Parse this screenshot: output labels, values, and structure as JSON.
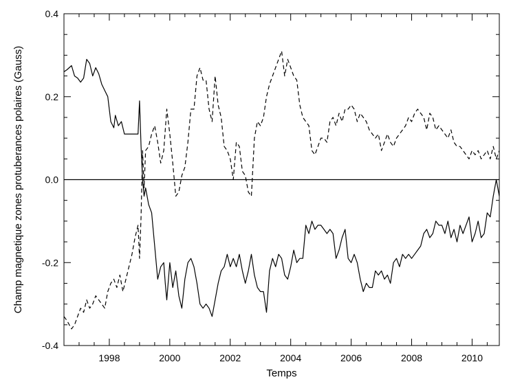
{
  "chart_data": {
    "type": "line",
    "title": "",
    "xlabel": "Temps",
    "ylabel": "Champ magnetique zones protuberances polaires (Gauss)",
    "xlim": [
      1996.5,
      2010.9
    ],
    "ylim": [
      -0.4,
      0.4
    ],
    "x_ticks": [
      1998,
      2000,
      2002,
      2004,
      2006,
      2008,
      2010
    ],
    "x_tick_labels": [
      "1998",
      "2000",
      "2002",
      "2004",
      "2006",
      "2008",
      "2010"
    ],
    "y_ticks": [
      -0.4,
      -0.2,
      0.0,
      0.2,
      0.4
    ],
    "y_tick_labels": [
      "-0.4",
      "-0.2",
      "0.0",
      "0.2",
      "0.4"
    ],
    "grid": false,
    "legend": "none",
    "zero_line": 0.0,
    "series": [
      {
        "style": "solid",
        "color": "#000000",
        "x": [
          1996.5,
          1996.6,
          1996.75,
          1996.85,
          1996.95,
          1997.05,
          1997.15,
          1997.25,
          1997.35,
          1997.45,
          1997.55,
          1997.65,
          1997.75,
          1997.85,
          1997.95,
          1998.05,
          1998.15,
          1998.2,
          1998.3,
          1998.4,
          1998.5,
          1998.6,
          1998.7,
          1998.8,
          1998.9,
          1998.95,
          1999.0,
          1999.05,
          1999.1,
          1999.15,
          1999.2,
          1999.3,
          1999.4,
          1999.5,
          1999.6,
          1999.7,
          1999.8,
          1999.85,
          1999.9,
          2000.0,
          2000.1,
          2000.2,
          2000.3,
          2000.4,
          2000.5,
          2000.6,
          2000.7,
          2000.8,
          2000.9,
          2001.0,
          2001.1,
          2001.2,
          2001.3,
          2001.4,
          2001.5,
          2001.6,
          2001.7,
          2001.8,
          2001.9,
          2002.0,
          2002.1,
          2002.2,
          2002.3,
          2002.4,
          2002.5,
          2002.6,
          2002.7,
          2002.8,
          2002.9,
          2003.0,
          2003.1,
          2003.2,
          2003.3,
          2003.4,
          2003.5,
          2003.6,
          2003.7,
          2003.8,
          2003.9,
          2004.0,
          2004.1,
          2004.2,
          2004.3,
          2004.4,
          2004.5,
          2004.6,
          2004.7,
          2004.8,
          2004.9,
          2005.0,
          2005.1,
          2005.2,
          2005.3,
          2005.4,
          2005.5,
          2005.6,
          2005.7,
          2005.8,
          2005.9,
          2006.0,
          2006.1,
          2006.2,
          2006.3,
          2006.4,
          2006.5,
          2006.6,
          2006.7,
          2006.8,
          2006.9,
          2007.0,
          2007.1,
          2007.2,
          2007.3,
          2007.4,
          2007.5,
          2007.6,
          2007.7,
          2007.8,
          2007.9,
          2008.0,
          2008.1,
          2008.2,
          2008.3,
          2008.4,
          2008.5,
          2008.6,
          2008.7,
          2008.8,
          2008.9,
          2009.0,
          2009.1,
          2009.2,
          2009.3,
          2009.4,
          2009.5,
          2009.6,
          2009.7,
          2009.8,
          2009.9,
          2010.0,
          2010.1,
          2010.2,
          2010.3,
          2010.4,
          2010.5,
          2010.6,
          2010.7,
          2010.8,
          2010.9
        ],
        "y": [
          0.26,
          0.265,
          0.275,
          0.25,
          0.245,
          0.235,
          0.245,
          0.29,
          0.28,
          0.25,
          0.27,
          0.255,
          0.23,
          0.215,
          0.2,
          0.14,
          0.125,
          0.155,
          0.13,
          0.14,
          0.11,
          0.11,
          0.11,
          0.11,
          0.11,
          0.11,
          0.19,
          0.08,
          0.0,
          -0.04,
          -0.02,
          -0.06,
          -0.08,
          -0.16,
          -0.24,
          -0.21,
          -0.2,
          -0.25,
          -0.29,
          -0.2,
          -0.26,
          -0.22,
          -0.28,
          -0.31,
          -0.24,
          -0.2,
          -0.19,
          -0.21,
          -0.25,
          -0.3,
          -0.31,
          -0.3,
          -0.31,
          -0.33,
          -0.29,
          -0.25,
          -0.22,
          -0.21,
          -0.18,
          -0.21,
          -0.19,
          -0.21,
          -0.18,
          -0.22,
          -0.25,
          -0.22,
          -0.18,
          -0.23,
          -0.26,
          -0.27,
          -0.27,
          -0.32,
          -0.22,
          -0.19,
          -0.21,
          -0.18,
          -0.19,
          -0.23,
          -0.24,
          -0.21,
          -0.17,
          -0.2,
          -0.19,
          -0.19,
          -0.11,
          -0.13,
          -0.1,
          -0.12,
          -0.11,
          -0.11,
          -0.12,
          -0.13,
          -0.12,
          -0.13,
          -0.19,
          -0.17,
          -0.14,
          -0.12,
          -0.19,
          -0.2,
          -0.18,
          -0.2,
          -0.24,
          -0.27,
          -0.25,
          -0.26,
          -0.26,
          -0.22,
          -0.23,
          -0.22,
          -0.24,
          -0.23,
          -0.25,
          -0.2,
          -0.19,
          -0.21,
          -0.18,
          -0.19,
          -0.18,
          -0.19,
          -0.18,
          -0.17,
          -0.16,
          -0.13,
          -0.12,
          -0.14,
          -0.13,
          -0.1,
          -0.11,
          -0.11,
          -0.13,
          -0.1,
          -0.14,
          -0.12,
          -0.15,
          -0.11,
          -0.13,
          -0.11,
          -0.09,
          -0.15,
          -0.13,
          -0.1,
          -0.14,
          -0.13,
          -0.08,
          -0.09,
          -0.04,
          0.0,
          -0.04
        ],
        "note_style": "solid line"
      },
      {
        "style": "dashed",
        "color": "#000000",
        "x": [
          1996.5,
          1996.6,
          1996.75,
          1996.85,
          1996.95,
          1997.05,
          1997.15,
          1997.25,
          1997.35,
          1997.45,
          1997.55,
          1997.65,
          1997.75,
          1997.85,
          1997.95,
          1998.05,
          1998.15,
          1998.25,
          1998.35,
          1998.45,
          1998.55,
          1998.65,
          1998.75,
          1998.85,
          1998.95,
          1999.0,
          1999.05,
          1999.1,
          1999.15,
          1999.2,
          1999.3,
          1999.4,
          1999.5,
          1999.6,
          1999.7,
          1999.8,
          1999.9,
          2000.0,
          2000.1,
          2000.2,
          2000.3,
          2000.4,
          2000.5,
          2000.6,
          2000.7,
          2000.8,
          2000.9,
          2001.0,
          2001.1,
          2001.2,
          2001.3,
          2001.4,
          2001.5,
          2001.6,
          2001.7,
          2001.8,
          2001.9,
          2002.0,
          2002.1,
          2002.2,
          2002.3,
          2002.4,
          2002.5,
          2002.6,
          2002.7,
          2002.8,
          2002.9,
          2003.0,
          2003.1,
          2003.2,
          2003.3,
          2003.4,
          2003.5,
          2003.6,
          2003.7,
          2003.8,
          2003.9,
          2004.0,
          2004.1,
          2004.2,
          2004.3,
          2004.4,
          2004.5,
          2004.6,
          2004.7,
          2004.8,
          2004.9,
          2005.0,
          2005.1,
          2005.2,
          2005.3,
          2005.4,
          2005.5,
          2005.6,
          2005.7,
          2005.8,
          2005.9,
          2006.0,
          2006.1,
          2006.2,
          2006.3,
          2006.4,
          2006.5,
          2006.6,
          2006.7,
          2006.8,
          2006.9,
          2007.0,
          2007.1,
          2007.2,
          2007.3,
          2007.4,
          2007.5,
          2007.6,
          2007.7,
          2007.8,
          2007.9,
          2008.0,
          2008.1,
          2008.2,
          2008.3,
          2008.4,
          2008.5,
          2008.6,
          2008.7,
          2008.8,
          2008.9,
          2009.0,
          2009.1,
          2009.2,
          2009.3,
          2009.4,
          2009.5,
          2009.6,
          2009.7,
          2009.8,
          2009.9,
          2010.0,
          2010.1,
          2010.2,
          2010.3,
          2010.4,
          2010.5,
          2010.6,
          2010.7,
          2010.8,
          2010.9
        ],
        "y": [
          -0.33,
          -0.34,
          -0.36,
          -0.35,
          -0.33,
          -0.31,
          -0.32,
          -0.29,
          -0.31,
          -0.3,
          -0.28,
          -0.29,
          -0.3,
          -0.31,
          -0.27,
          -0.25,
          -0.24,
          -0.26,
          -0.23,
          -0.27,
          -0.24,
          -0.21,
          -0.18,
          -0.14,
          -0.11,
          -0.19,
          -0.09,
          0.07,
          -0.02,
          0.07,
          0.08,
          0.11,
          0.13,
          0.09,
          0.04,
          0.07,
          0.17,
          0.11,
          0.04,
          -0.04,
          -0.03,
          0.01,
          0.03,
          0.09,
          0.17,
          0.17,
          0.25,
          0.27,
          0.24,
          0.24,
          0.17,
          0.14,
          0.25,
          0.18,
          0.15,
          0.08,
          0.07,
          0.05,
          0.0,
          0.09,
          0.08,
          0.02,
          0.01,
          -0.03,
          -0.04,
          0.1,
          0.14,
          0.13,
          0.15,
          0.2,
          0.23,
          0.25,
          0.27,
          0.29,
          0.31,
          0.25,
          0.29,
          0.27,
          0.25,
          0.24,
          0.18,
          0.15,
          0.14,
          0.13,
          0.07,
          0.06,
          0.08,
          0.1,
          0.1,
          0.09,
          0.14,
          0.15,
          0.13,
          0.16,
          0.14,
          0.17,
          0.17,
          0.18,
          0.17,
          0.14,
          0.16,
          0.15,
          0.14,
          0.12,
          0.11,
          0.1,
          0.11,
          0.07,
          0.09,
          0.11,
          0.09,
          0.08,
          0.1,
          0.11,
          0.12,
          0.13,
          0.15,
          0.14,
          0.16,
          0.17,
          0.16,
          0.15,
          0.12,
          0.16,
          0.15,
          0.12,
          0.13,
          0.12,
          0.11,
          0.1,
          0.12,
          0.09,
          0.08,
          0.08,
          0.07,
          0.06,
          0.05,
          0.07,
          0.06,
          0.07,
          0.05,
          0.06,
          0.07,
          0.05,
          0.08,
          0.05,
          0.07
        ],
        "note_style": "dashed line"
      }
    ]
  }
}
